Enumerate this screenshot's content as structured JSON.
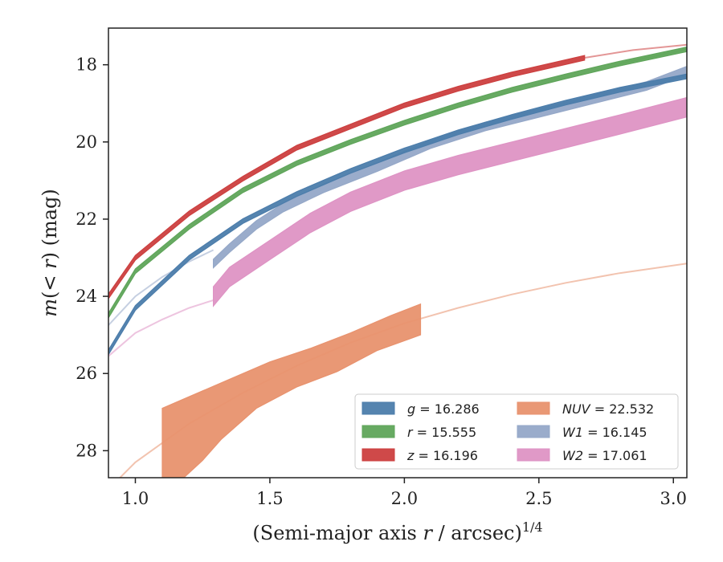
{
  "chart_data": {
    "type": "line",
    "xlabel": "(Semi-major axis r / arcsec)^{1/4}",
    "ylabel": "m(< r) (mag)",
    "xlim": [
      0.9,
      3.05
    ],
    "ylim": [
      28.7,
      17.05
    ],
    "y_inverted": true,
    "x_ticks": [
      1.0,
      1.5,
      2.0,
      2.5,
      3.0
    ],
    "x_tick_labels": [
      "1.0",
      "1.5",
      "2.0",
      "2.5",
      "3.0"
    ],
    "y_ticks": [
      18,
      20,
      22,
      24,
      26,
      28
    ],
    "y_tick_labels": [
      "18",
      "20",
      "22",
      "24",
      "26",
      "28"
    ],
    "grid": false,
    "legend_position": "lower-right",
    "series": [
      {
        "name": "g = 16.286",
        "color": "#4C7DAB",
        "band_points": [
          [
            0.9,
            25.45
          ],
          [
            1.0,
            24.3
          ],
          [
            1.2,
            23.0
          ],
          [
            1.4,
            22.05
          ],
          [
            1.6,
            21.35
          ],
          [
            1.8,
            20.75
          ],
          [
            2.0,
            20.22
          ],
          [
            2.2,
            19.75
          ],
          [
            2.4,
            19.35
          ],
          [
            2.6,
            18.98
          ],
          [
            2.8,
            18.65
          ],
          [
            3.05,
            18.3
          ]
        ],
        "band_width": 0.12,
        "fit_points": [
          [
            2.8,
            18.65
          ],
          [
            3.05,
            18.3
          ]
        ]
      },
      {
        "name": "r = 15.555",
        "color": "#5FA55A",
        "band_points": [
          [
            0.9,
            24.5
          ],
          [
            1.0,
            23.35
          ],
          [
            1.2,
            22.2
          ],
          [
            1.4,
            21.25
          ],
          [
            1.6,
            20.55
          ],
          [
            1.8,
            20.0
          ],
          [
            2.0,
            19.5
          ],
          [
            2.2,
            19.05
          ],
          [
            2.4,
            18.65
          ],
          [
            2.6,
            18.3
          ],
          [
            2.8,
            17.97
          ],
          [
            3.05,
            17.6
          ]
        ],
        "band_width": 0.12,
        "fit_points": [
          [
            2.8,
            17.97
          ],
          [
            3.05,
            17.6
          ]
        ]
      },
      {
        "name": "z = 16.196",
        "color": "#CC3F3F",
        "band_points": [
          [
            0.9,
            24.0
          ],
          [
            1.0,
            23.0
          ],
          [
            1.2,
            21.85
          ],
          [
            1.4,
            20.95
          ],
          [
            1.6,
            20.15
          ],
          [
            1.8,
            19.6
          ],
          [
            2.0,
            19.05
          ],
          [
            2.2,
            18.62
          ],
          [
            2.4,
            18.25
          ],
          [
            2.67,
            17.82
          ]
        ],
        "band_width": 0.12,
        "fit_points": [
          [
            2.67,
            17.82
          ],
          [
            2.85,
            17.62
          ],
          [
            3.05,
            17.48
          ]
        ]
      },
      {
        "name": "NUV = 22.532",
        "color": "#E8926E",
        "band_lower": [
          [
            1.1,
            28.7
          ],
          [
            1.18,
            28.7
          ],
          [
            1.25,
            28.25
          ],
          [
            1.32,
            27.7
          ],
          [
            1.45,
            26.9
          ],
          [
            1.6,
            26.35
          ],
          [
            1.75,
            25.95
          ],
          [
            1.9,
            25.4
          ],
          [
            2.06,
            25.0
          ]
        ],
        "band_upper": [
          [
            1.1,
            26.9
          ],
          [
            1.2,
            26.6
          ],
          [
            1.35,
            26.15
          ],
          [
            1.5,
            25.7
          ],
          [
            1.65,
            25.35
          ],
          [
            1.8,
            24.95
          ],
          [
            1.95,
            24.5
          ],
          [
            2.06,
            24.2
          ]
        ],
        "fit_points": [
          [
            0.9,
            29.0
          ],
          [
            1.0,
            28.3
          ],
          [
            1.2,
            27.3
          ],
          [
            1.4,
            26.5
          ],
          [
            1.6,
            25.8
          ],
          [
            1.8,
            25.2
          ],
          [
            2.0,
            24.7
          ],
          [
            2.2,
            24.3
          ],
          [
            2.4,
            23.95
          ],
          [
            2.6,
            23.65
          ],
          [
            2.8,
            23.4
          ],
          [
            3.05,
            23.15
          ]
        ]
      },
      {
        "name": "W1 = 16.145",
        "color": "#95A8C8",
        "band_points": [
          [
            1.29,
            23.15
          ],
          [
            1.35,
            22.75
          ],
          [
            1.45,
            22.15
          ],
          [
            1.55,
            21.7
          ],
          [
            1.7,
            21.2
          ],
          [
            1.9,
            20.65
          ],
          [
            2.1,
            20.05
          ],
          [
            2.3,
            19.6
          ],
          [
            2.5,
            19.25
          ],
          [
            2.7,
            18.9
          ],
          [
            2.9,
            18.55
          ],
          [
            3.05,
            18.15
          ]
        ],
        "band_width": 0.22,
        "fit_points": [
          [
            0.9,
            24.75
          ],
          [
            1.0,
            24.0
          ],
          [
            1.1,
            23.5
          ],
          [
            1.2,
            23.1
          ],
          [
            1.29,
            22.8
          ]
        ]
      },
      {
        "name": "W2 = 17.061",
        "color": "#DE93C4",
        "band_points": [
          [
            1.29,
            24.0
          ],
          [
            1.35,
            23.5
          ],
          [
            1.5,
            22.8
          ],
          [
            1.65,
            22.1
          ],
          [
            1.8,
            21.55
          ],
          [
            2.0,
            21.0
          ],
          [
            2.2,
            20.6
          ],
          [
            2.4,
            20.25
          ],
          [
            2.6,
            19.9
          ],
          [
            2.8,
            19.55
          ],
          [
            3.05,
            19.1
          ]
        ],
        "band_width": 0.5,
        "fit_points": [
          [
            0.9,
            25.55
          ],
          [
            1.0,
            24.95
          ],
          [
            1.1,
            24.6
          ],
          [
            1.2,
            24.3
          ],
          [
            1.29,
            24.1
          ]
        ]
      }
    ]
  },
  "legend": {
    "col1": [
      {
        "sym": "g",
        "val": " = 16.286",
        "color": "#4C7DAB"
      },
      {
        "sym": "r",
        "val": " = 15.555",
        "color": "#5FA55A"
      },
      {
        "sym": "z",
        "val": " = 16.196",
        "color": "#CC3F3F"
      }
    ],
    "col2": [
      {
        "sym": "NUV",
        "val": " = 22.532",
        "color": "#E8926E"
      },
      {
        "sym": "W1",
        "val": " = 16.145",
        "color": "#95A8C8"
      },
      {
        "sym": "W2",
        "val": " = 17.061",
        "color": "#DE93C4"
      }
    ]
  }
}
